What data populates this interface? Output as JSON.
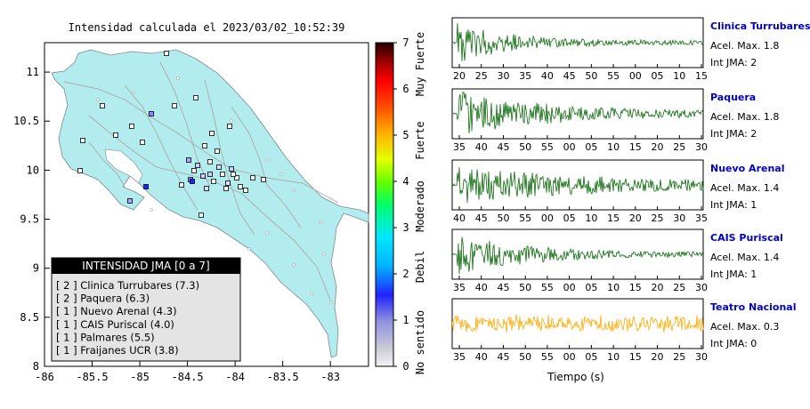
{
  "map": {
    "title": "Intensidad calculada el 2023/03/02_10:52:39",
    "xticks": [
      -86,
      -85.5,
      -85,
      -84.5,
      -84,
      -83.5,
      -83
    ],
    "yticks": [
      8,
      8.5,
      9,
      9.5,
      10,
      10.5,
      11
    ],
    "xlim": [
      -86,
      -82.6
    ],
    "ylim": [
      8,
      11.3
    ],
    "land_color": "#b3ecee",
    "legend": {
      "title": "INTENSIDAD JMA [0 a 7]",
      "items": [
        "[ 2 ]  Clinica Turrubares (7.3)",
        "[ 2 ]  Paquera (6.3)",
        "[ 1 ]  Nuevo Arenal (4.3)",
        "[ 1 ]  CAIS Puriscal (4.0)",
        "[ 1 ]  Palmares (5.5)",
        "[ 1 ]  Fraijanes UCR (3.8)"
      ]
    }
  },
  "colorbar": {
    "ticks": [
      "0",
      "1",
      "2",
      "3",
      "4",
      "5",
      "6",
      "7"
    ],
    "labels": [
      "No sentido",
      "Debil",
      "Moderado",
      "Fuerte",
      "Muy Fuerte"
    ]
  },
  "chart_data": {
    "type": "line",
    "xlabel": "Tiempo (s)",
    "series": [
      {
        "name": "Clinica Turrubares",
        "accel_label": "Acel. Max. 1.8",
        "int_label": "Int JMA: 2",
        "color": "#0a6b0a",
        "ticks": [
          "20",
          "25",
          "30",
          "35",
          "40",
          "45",
          "50",
          "55",
          "00",
          "05",
          "10",
          "15"
        ]
      },
      {
        "name": "Paquera",
        "accel_label": "Acel. Max. 1.8",
        "int_label": "Int JMA: 2",
        "color": "#0a6b0a",
        "ticks": [
          "35",
          "40",
          "45",
          "50",
          "55",
          "00",
          "05",
          "10",
          "15",
          "20",
          "25",
          "30"
        ]
      },
      {
        "name": "Nuevo Arenal",
        "accel_label": "Acel. Max. 1.4",
        "int_label": "Int JMA: 1",
        "color": "#0a6b0a",
        "ticks": [
          "40",
          "45",
          "50",
          "55",
          "00",
          "05",
          "10",
          "15",
          "20",
          "25",
          "30",
          "35"
        ]
      },
      {
        "name": "CAIS Puriscal",
        "accel_label": "Acel. Max. 1.4",
        "int_label": "Int JMA: 1",
        "color": "#0a6b0a",
        "ticks": [
          "35",
          "40",
          "45",
          "50",
          "55",
          "00",
          "05",
          "10",
          "15",
          "20",
          "25",
          "30"
        ]
      },
      {
        "name": "Teatro Nacional",
        "accel_label": "Acel. Max. 0.3",
        "int_label": "Int JMA: 0",
        "color": "#ffaa00",
        "ticks": [
          "35",
          "40",
          "45",
          "50",
          "55",
          "00",
          "05",
          "10",
          "15",
          "20",
          "25",
          "30"
        ]
      }
    ]
  }
}
